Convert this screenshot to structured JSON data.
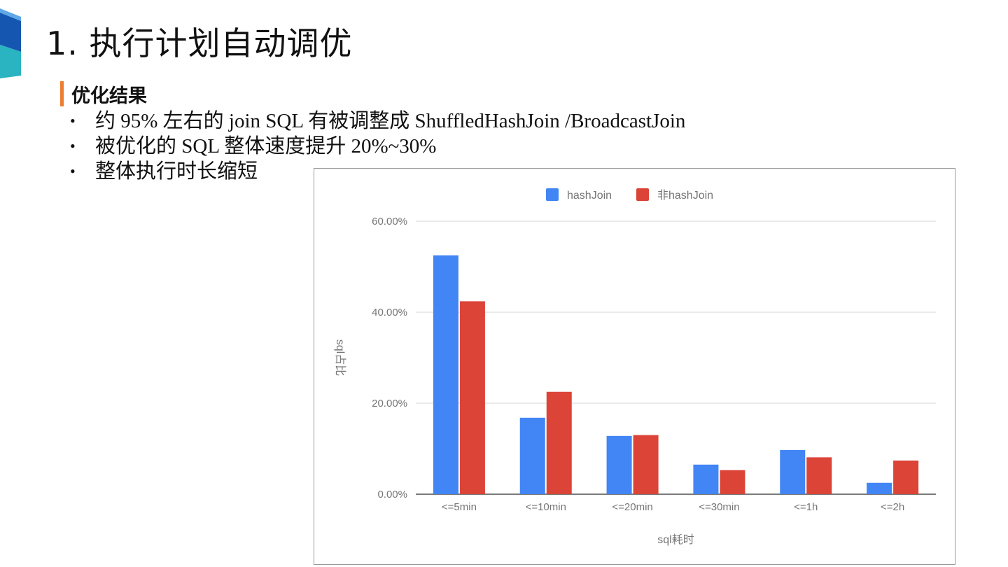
{
  "slide": {
    "title": "1. 执行计划自动调优",
    "section_label": "优化结果",
    "bullets": [
      "约 95% 左右的 join SQL 有被调整成 ShuffledHashJoin /BroadcastJoin",
      "被优化的 SQL 整体速度提升 20%~30%",
      "整体执行时长缩短"
    ],
    "bullet_glyph": "•"
  },
  "colors": {
    "accent_bar": "#ee7d31",
    "logo_dark": "#1557b0",
    "logo_light": "#2ab3c0",
    "series_hashjoin": "#4285f4",
    "series_non_hashjoin": "#db4437"
  },
  "chart_data": {
    "type": "bar",
    "categories": [
      "<=5min",
      "<=10min",
      "<=20min",
      "<=30min",
      "<=1h",
      "<=2h"
    ],
    "series": [
      {
        "name": "hashJoin",
        "color": "#4285f4",
        "values": [
          52.5,
          16.8,
          12.8,
          6.5,
          9.7,
          2.5
        ]
      },
      {
        "name": "非hashJoin",
        "color": "#db4437",
        "values": [
          42.4,
          22.5,
          13.0,
          5.3,
          8.1,
          7.4
        ]
      }
    ],
    "title": "",
    "xlabel": "sql耗时",
    "ylabel": "sql占比",
    "ylim": [
      0,
      60
    ],
    "yticks": [
      "0.00%",
      "20.00%",
      "40.00%",
      "60.00%"
    ],
    "ytick_values": [
      0,
      20,
      40,
      60
    ],
    "grid": true,
    "legend_position": "top-center"
  }
}
